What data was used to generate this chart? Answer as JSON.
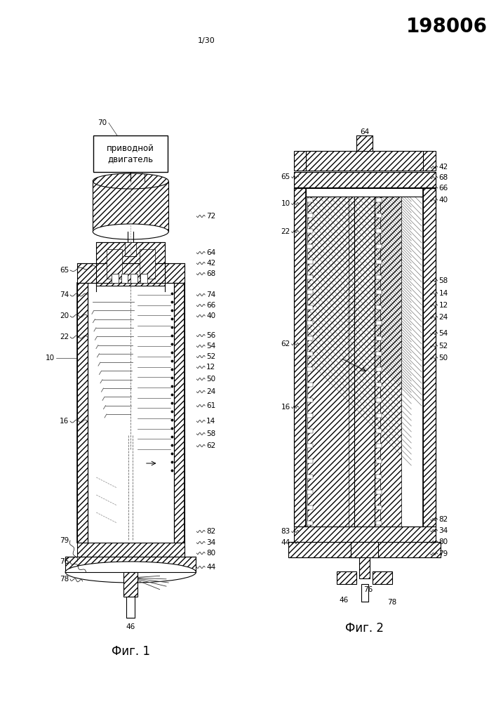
{
  "title_number": "198006",
  "page_number": "1/30",
  "fig1_label": "Фиг. 1",
  "fig2_label": "Фиг. 2",
  "motor_box_text": "приводной\nдвигатель",
  "background_color": "#ffffff",
  "line_color": "#000000",
  "title_fontsize": 20,
  "label_fontsize": 7.5,
  "fig_label_fontsize": 12,
  "page_fontsize": 8
}
